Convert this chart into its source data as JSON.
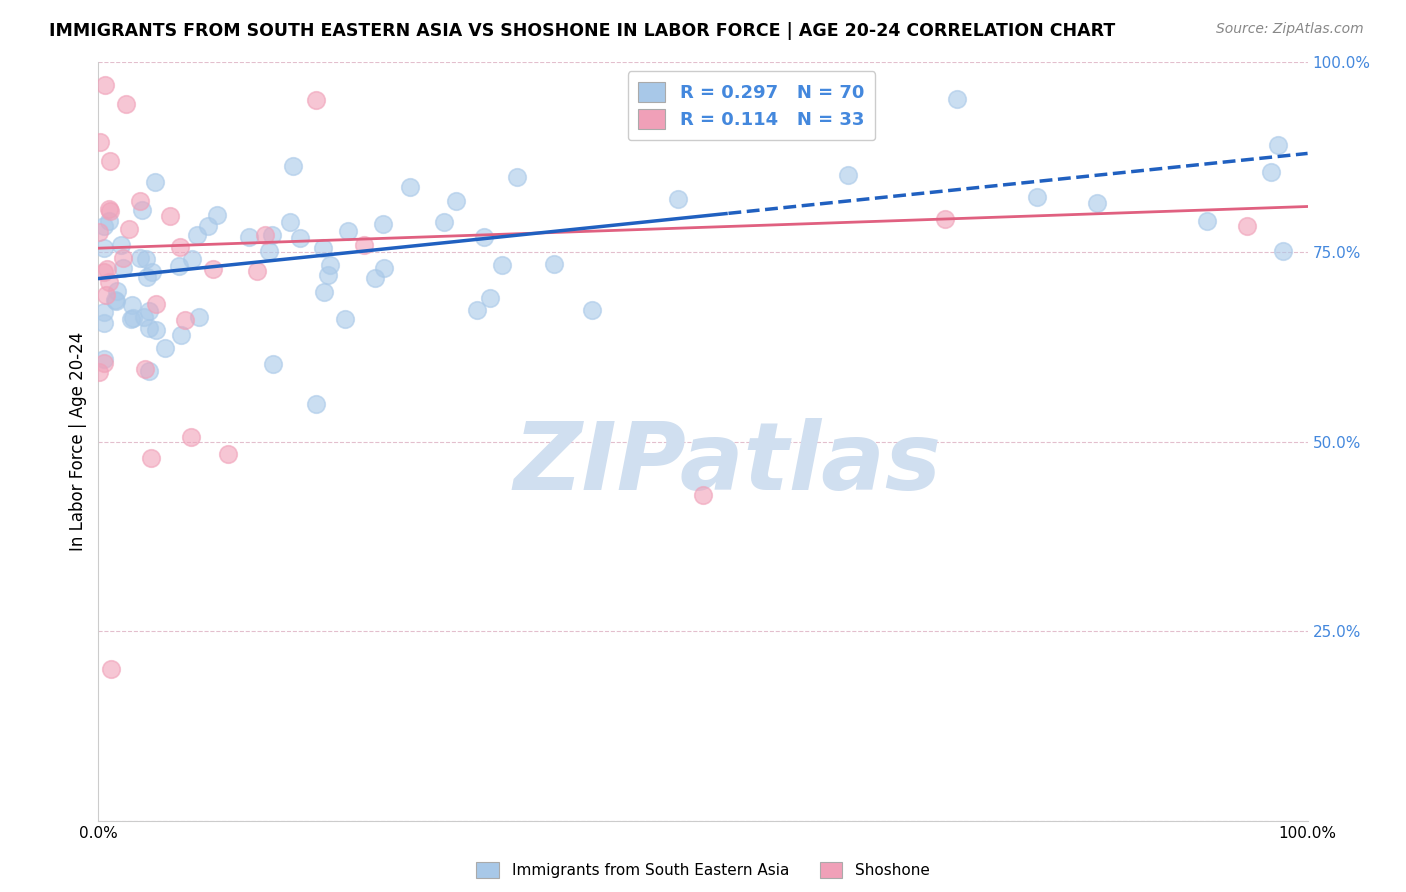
{
  "title": "IMMIGRANTS FROM SOUTH EASTERN ASIA VS SHOSHONE IN LABOR FORCE | AGE 20-24 CORRELATION CHART",
  "source": "Source: ZipAtlas.com",
  "ylabel": "In Labor Force | Age 20-24",
  "R_blue": 0.297,
  "N_blue": 70,
  "R_pink": 0.114,
  "N_pink": 33,
  "legend_label_blue": "Immigrants from South Eastern Asia",
  "legend_label_pink": "Shoshone",
  "blue_color": "#a8c8e8",
  "pink_color": "#f0a0b8",
  "line_blue_color": "#2060c0",
  "line_pink_color": "#e06080",
  "right_axis_color": "#4488dd",
  "grid_color": "#e0b8c8",
  "watermark_color": "#d0dff0",
  "blue_line_intercept": 0.715,
  "blue_line_slope": 0.165,
  "blue_line_dash_start": 0.52,
  "pink_line_intercept": 0.755,
  "pink_line_slope": 0.055,
  "xlim": [
    0.0,
    1.0
  ],
  "ylim": [
    0.0,
    1.0
  ],
  "yticks": [
    0.0,
    0.25,
    0.5,
    0.75,
    1.0
  ],
  "ytick_labels": [
    "",
    "25.0%",
    "50.0%",
    "75.0%",
    "100.0%"
  ],
  "xticks": [
    0.0,
    1.0
  ],
  "xtick_labels": [
    "0.0%",
    "100.0%"
  ]
}
